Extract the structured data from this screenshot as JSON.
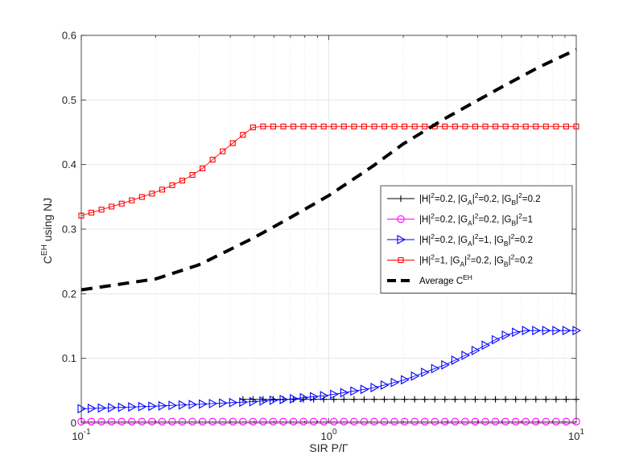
{
  "chart_data": {
    "type": "line",
    "xscale": "log",
    "xlim": [
      0.1,
      10
    ],
    "ylim": [
      0,
      0.6
    ],
    "xlabel": "SIR P/Γ",
    "ylabel_main": "C",
    "ylabel_sup": "EH",
    "ylabel_rest": " using NJ",
    "grid": true,
    "legend_position": "right",
    "xticks": [
      {
        "base": "10",
        "exp": "-1",
        "value": 0.1
      },
      {
        "base": "10",
        "exp": "0",
        "value": 1
      },
      {
        "base": "10",
        "exp": "1",
        "value": 10
      }
    ],
    "yticks": [
      "0",
      "0.1",
      "0.2",
      "0.3",
      "0.4",
      "0.5",
      "0.6"
    ],
    "yvalues": [
      0,
      0.1,
      0.2,
      0.3,
      0.4,
      0.5,
      0.6
    ],
    "series": [
      {
        "legend": [
          [
            "|H|",
            "2",
            "=0.2, |G",
            "A",
            "|",
            "2",
            "=0.2, |G",
            "B",
            "|",
            "2",
            "=0.2"
          ]
        ],
        "color": "#000000",
        "marker": "plus",
        "x": [
          0.1,
          10
        ],
        "y": [
          0.0365,
          0.0365
        ],
        "start_x": 0.4217
      },
      {
        "legend": [
          [
            "|H|",
            "2",
            "=0.2, |G",
            "A",
            "|",
            "2",
            "=0.2, |G",
            "B",
            "|",
            "2",
            "=1"
          ]
        ],
        "color": "#ff00ff",
        "marker": "circle",
        "x": [
          0.1,
          10
        ],
        "y": [
          0.002,
          0.002
        ],
        "start_x": 0.1
      },
      {
        "legend": [
          [
            "|H|",
            "2",
            "=0.2, |G",
            "A",
            "|",
            "2",
            "=1, |G",
            "B",
            "|",
            "2",
            "=0.2"
          ]
        ],
        "color": "#0000ff",
        "marker": "triangle-right",
        "x": [
          0.1,
          0.2,
          0.3,
          0.5,
          0.7,
          1.0,
          1.5,
          2.0,
          3.0,
          4.0,
          5.0,
          6.0,
          7.0,
          10.0
        ],
        "y": [
          0.022,
          0.026,
          0.029,
          0.033,
          0.037,
          0.043,
          0.054,
          0.066,
          0.091,
          0.114,
          0.134,
          0.143,
          0.143,
          0.143
        ],
        "start_x": 0.1
      },
      {
        "legend": [
          [
            "|H|",
            "2",
            "=1, |G",
            "A",
            "|",
            "2",
            "=0.2, |G",
            "B",
            "|",
            "2",
            "=0.2"
          ]
        ],
        "color": "#ff0000",
        "marker": "square",
        "x": [
          0.1,
          0.15,
          0.2,
          0.25,
          0.3,
          0.35,
          0.4,
          0.45,
          0.5,
          10
        ],
        "y": [
          0.321,
          0.341,
          0.357,
          0.373,
          0.39,
          0.412,
          0.43,
          0.446,
          0.459,
          0.459
        ],
        "start_x": 0.1
      },
      {
        "legend": [
          [
            "Average C",
            "EH",
            ""
          ]
        ],
        "color": "#000000",
        "marker": "none",
        "dashed": true,
        "x": [
          0.1,
          0.2,
          0.3,
          0.5,
          0.7,
          1.0,
          1.5,
          2.0,
          3.0,
          5.0,
          7.0,
          10.0
        ],
        "y": [
          0.206,
          0.223,
          0.245,
          0.287,
          0.318,
          0.352,
          0.397,
          0.432,
          0.473,
          0.52,
          0.55,
          0.578
        ]
      }
    ]
  }
}
